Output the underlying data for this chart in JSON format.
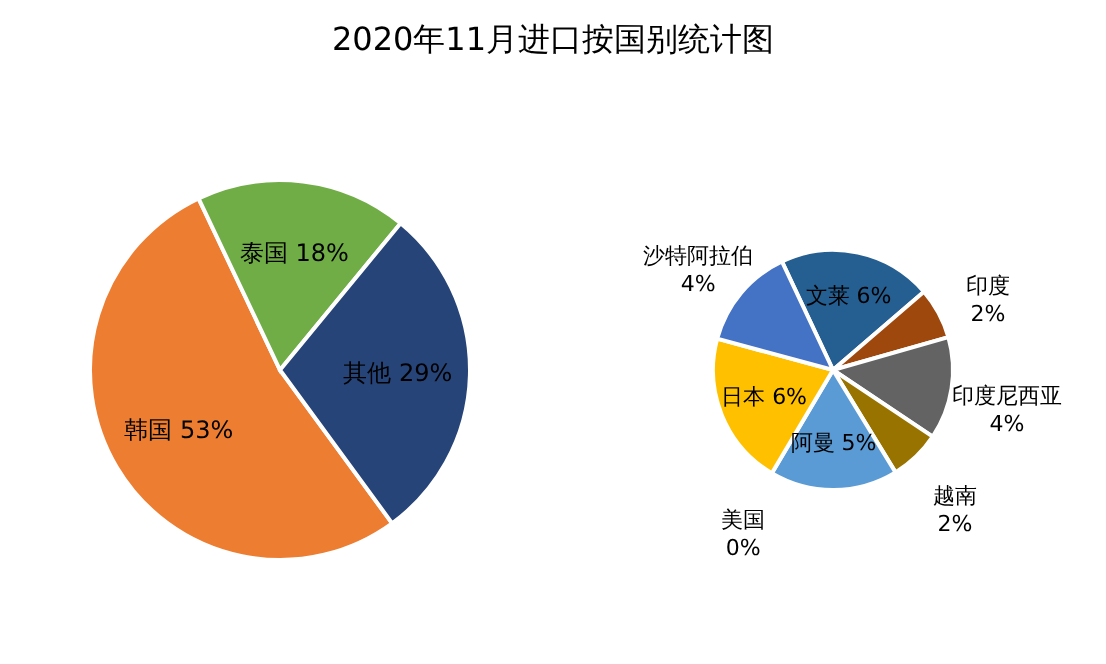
{
  "chart_data": [
    {
      "type": "pie",
      "title": "2020年11月进口按国别统计图",
      "categories": [
        "韩国",
        "泰国",
        "其他"
      ],
      "values": [
        53,
        18,
        29
      ],
      "value_labels": [
        "53%",
        "18%",
        "29%"
      ],
      "colors": [
        "#ed7d31",
        "#70ad47",
        "#264478"
      ]
    },
    {
      "type": "pie",
      "categories": [
        "文莱",
        "印度",
        "印度尼西亚",
        "越南",
        "阿曼",
        "美国",
        "日本",
        "沙特阿拉伯"
      ],
      "values": [
        6,
        2,
        4,
        2,
        5,
        0,
        6,
        4
      ],
      "value_labels": [
        "6%",
        "2%",
        "4%",
        "2%",
        "5%",
        "0%",
        "6%",
        "4%"
      ],
      "colors": [
        "#255e91",
        "#9e480e",
        "#636363",
        "#997300",
        "#5b9bd5",
        "#a5a5a5",
        "#ffc000",
        "#4472c4"
      ]
    }
  ]
}
